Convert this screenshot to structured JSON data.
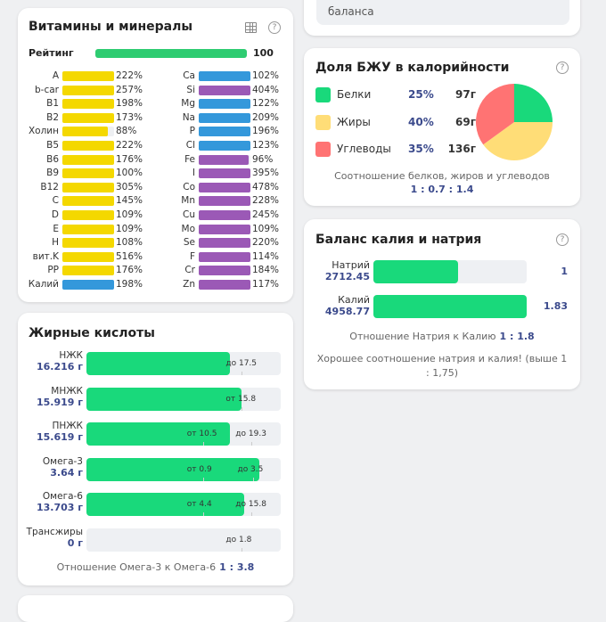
{
  "vitamins": {
    "title": "Витамины и минералы",
    "rating": {
      "label": "Рейтинг",
      "value": "100",
      "fraction": 1.0,
      "color": "#2ecc71"
    },
    "left": [
      {
        "label": "A",
        "value": "222%",
        "pct": 222,
        "color": "#f4d800"
      },
      {
        "label": "b-car",
        "value": "257%",
        "pct": 257,
        "color": "#f4d800"
      },
      {
        "label": "B1",
        "value": "198%",
        "pct": 198,
        "color": "#f4d800"
      },
      {
        "label": "B2",
        "value": "173%",
        "pct": 173,
        "color": "#f4d800"
      },
      {
        "label": "Холин",
        "value": "88%",
        "pct": 88,
        "color": "#f4d800"
      },
      {
        "label": "B5",
        "value": "222%",
        "pct": 222,
        "color": "#f4d800"
      },
      {
        "label": "B6",
        "value": "176%",
        "pct": 176,
        "color": "#f4d800"
      },
      {
        "label": "B9",
        "value": "100%",
        "pct": 100,
        "color": "#f4d800"
      },
      {
        "label": "B12",
        "value": "305%",
        "pct": 305,
        "color": "#f4d800"
      },
      {
        "label": "C",
        "value": "145%",
        "pct": 145,
        "color": "#f4d800"
      },
      {
        "label": "D",
        "value": "109%",
        "pct": 109,
        "color": "#f4d800"
      },
      {
        "label": "E",
        "value": "109%",
        "pct": 109,
        "color": "#f4d800"
      },
      {
        "label": "H",
        "value": "108%",
        "pct": 108,
        "color": "#f4d800"
      },
      {
        "label": "вит.K",
        "value": "516%",
        "pct": 516,
        "color": "#f4d800"
      },
      {
        "label": "PP",
        "value": "176%",
        "pct": 176,
        "color": "#f4d800"
      },
      {
        "label": "Калий",
        "value": "198%",
        "pct": 198,
        "color": "#3498db"
      }
    ],
    "right": [
      {
        "label": "Ca",
        "value": "102%",
        "pct": 102,
        "color": "#3498db"
      },
      {
        "label": "Si",
        "value": "404%",
        "pct": 404,
        "color": "#9b59b6"
      },
      {
        "label": "Mg",
        "value": "122%",
        "pct": 122,
        "color": "#3498db"
      },
      {
        "label": "Na",
        "value": "209%",
        "pct": 209,
        "color": "#3498db"
      },
      {
        "label": "P",
        "value": "196%",
        "pct": 196,
        "color": "#3498db"
      },
      {
        "label": "Cl",
        "value": "123%",
        "pct": 123,
        "color": "#3498db"
      },
      {
        "label": "Fe",
        "value": "96%",
        "pct": 96,
        "color": "#9b59b6"
      },
      {
        "label": "I",
        "value": "395%",
        "pct": 395,
        "color": "#9b59b6"
      },
      {
        "label": "Co",
        "value": "478%",
        "pct": 478,
        "color": "#9b59b6"
      },
      {
        "label": "Mn",
        "value": "228%",
        "pct": 228,
        "color": "#9b59b6"
      },
      {
        "label": "Cu",
        "value": "245%",
        "pct": 245,
        "color": "#9b59b6"
      },
      {
        "label": "Mo",
        "value": "109%",
        "pct": 109,
        "color": "#9b59b6"
      },
      {
        "label": "Se",
        "value": "220%",
        "pct": 220,
        "color": "#9b59b6"
      },
      {
        "label": "F",
        "value": "114%",
        "pct": 114,
        "color": "#9b59b6"
      },
      {
        "label": "Cr",
        "value": "184%",
        "pct": 184,
        "color": "#9b59b6"
      },
      {
        "label": "Zn",
        "value": "117%",
        "pct": 117,
        "color": "#9b59b6"
      }
    ]
  },
  "fatty_acids": {
    "title": "Жирные кислоты",
    "rows": [
      {
        "name": "НЖК",
        "amount": "16.216 г",
        "fill": 0.74,
        "marks": [
          {
            "text": "до 17.5",
            "pos": 0.8
          }
        ]
      },
      {
        "name": "МНЖК",
        "amount": "15.919 г",
        "fill": 0.8,
        "marks": [
          {
            "text": "от 15.8",
            "pos": 0.8
          }
        ]
      },
      {
        "name": "ПНЖК",
        "amount": "15.619 г",
        "fill": 0.74,
        "marks": [
          {
            "text": "от 10.5",
            "pos": 0.6
          },
          {
            "text": "до 19.3",
            "pos": 0.85
          }
        ]
      },
      {
        "name": "Омега-3",
        "amount": "3.64 г",
        "fill": 0.89,
        "marks": [
          {
            "text": "от 0.9",
            "pos": 0.6
          },
          {
            "text": "до 3.5",
            "pos": 0.86
          }
        ]
      },
      {
        "name": "Омега-6",
        "amount": "13.703 г",
        "fill": 0.81,
        "marks": [
          {
            "text": "от 4.4",
            "pos": 0.6
          },
          {
            "text": "до 15.8",
            "pos": 0.85
          }
        ]
      },
      {
        "name": "Трансжиры",
        "amount": "0 г",
        "fill": 0,
        "marks": [
          {
            "text": "до 1.8",
            "pos": 0.8
          }
        ]
      }
    ],
    "ratio_label": "Отношение Омега-3 к Омега-6",
    "ratio_value": "1 : 3.8"
  },
  "top_card": {
    "text": "баланса"
  },
  "bju": {
    "title": "Доля БЖУ в калорийности",
    "items": [
      {
        "name": "Белки",
        "pct": "25%",
        "grams": "97г",
        "share": 25,
        "color": "#19d97b"
      },
      {
        "name": "Жиры",
        "pct": "40%",
        "grams": "69г",
        "share": 40,
        "color": "#ffdd77"
      },
      {
        "name": "Углеводы",
        "pct": "35%",
        "grams": "136г",
        "share": 35,
        "color": "#ff7373"
      }
    ],
    "ratio_label": "Соотношение белков, жиров и углеводов",
    "ratio_value": "1 : 0.7 : 1.4"
  },
  "kna": {
    "title": "Баланс калия и натрия",
    "rows": [
      {
        "name": "Натрий",
        "amount": "2712.45",
        "ratio": "1",
        "fill": 0.55
      },
      {
        "name": "Калий",
        "amount": "4958.77",
        "ratio": "1.83",
        "fill": 1.0
      }
    ],
    "ratio_label": "Отношение Натрия к Калию",
    "ratio_value": "1 : 1.8",
    "note": "Хорошее соотношение натрия и калия! (выше 1 : 1,75)"
  },
  "icons": {
    "help": "?"
  }
}
